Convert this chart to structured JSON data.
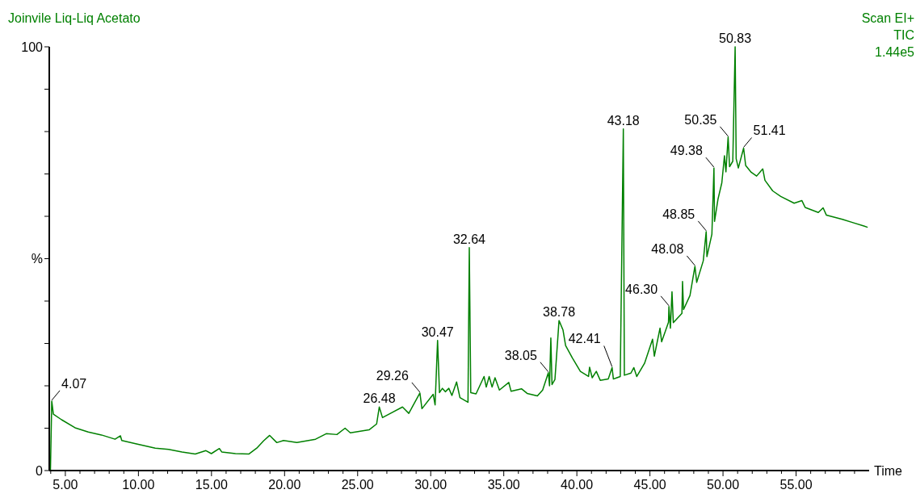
{
  "chart_data": {
    "type": "line",
    "title": "Joinvile Liq-Liq Acetato",
    "xlabel": "Time",
    "ylabel": "%",
    "x": [
      3.98,
      4.07,
      4.18,
      4.74,
      5.66,
      6.57,
      7.47,
      8.4,
      8.77,
      8.86,
      9.87,
      11.15,
      12.06,
      12.98,
      13.89,
      14.62,
      14.99,
      15.54,
      15.7,
      16.64,
      17.55,
      18.1,
      18.56,
      18.98,
      19.47,
      19.93,
      20.84,
      22.12,
      22.85,
      23.58,
      24.14,
      24.5,
      25.78,
      26.3,
      26.48,
      26.7,
      28.07,
      28.5,
      29.26,
      29.4,
      30.17,
      30.3,
      30.47,
      30.6,
      30.8,
      31.0,
      31.24,
      31.45,
      31.77,
      32.0,
      32.55,
      32.64,
      32.74,
      33.1,
      33.65,
      33.8,
      34.0,
      34.2,
      34.4,
      34.7,
      35.34,
      35.5,
      36.21,
      36.6,
      37.3,
      37.66,
      38.05,
      38.13,
      38.22,
      38.3,
      38.5,
      38.78,
      39.05,
      39.23,
      39.69,
      40.24,
      40.8,
      40.87,
      41.05,
      41.33,
      41.6,
      42.15,
      42.41,
      42.5,
      42.97,
      43.18,
      43.25,
      43.7,
      43.9,
      44.1,
      44.63,
      45.18,
      45.3,
      45.69,
      45.8,
      46.27,
      46.3,
      46.4,
      46.51,
      46.6,
      47.19,
      47.23,
      47.3,
      47.74,
      48.08,
      48.2,
      48.65,
      48.85,
      48.9,
      49.24,
      49.38,
      49.42,
      49.66,
      49.92,
      50.1,
      50.2,
      50.35,
      50.45,
      50.67,
      50.83,
      50.9,
      51.05,
      51.41,
      51.55,
      51.93,
      52.3,
      52.72,
      52.87,
      53.4,
      53.95,
      54.87,
      55.4,
      55.62,
      56.52,
      56.85,
      57.07,
      58.17,
      58.9,
      59.64,
      59.9
    ],
    "series": [
      {
        "color": "#008000",
        "values": [
          0,
          16.4,
          13.3,
          12.0,
          10.1,
          9.1,
          8.4,
          7.4,
          8.2,
          7.1,
          6.3,
          5.3,
          5.0,
          4.4,
          3.9,
          4.7,
          4.0,
          5.2,
          4.4,
          4.0,
          3.9,
          5.3,
          7.0,
          8.3,
          6.6,
          7.1,
          6.6,
          7.4,
          8.7,
          8.5,
          10.0,
          8.9,
          9.6,
          11.0,
          15.0,
          12.5,
          15.0,
          13.5,
          18.3,
          14.6,
          18.0,
          15.5,
          30.7,
          18.4,
          19.4,
          18.6,
          19.4,
          17.7,
          20.9,
          17.2,
          16.1,
          52.6,
          18.4,
          18.1,
          22.2,
          19.7,
          22.2,
          19.7,
          21.9,
          19.0,
          20.8,
          18.7,
          19.3,
          18.2,
          17.6,
          19.0,
          23.1,
          20.0,
          31.3,
          20.3,
          21.5,
          35.4,
          33.2,
          29.5,
          26.6,
          23.4,
          22.2,
          24.4,
          21.9,
          23.4,
          21.3,
          21.6,
          24.3,
          21.6,
          22.2,
          80.6,
          22.5,
          23.0,
          24.3,
          22.2,
          25.3,
          31.0,
          27.0,
          33.6,
          30.4,
          35.0,
          38.7,
          33.6,
          42.2,
          34.9,
          37.1,
          44.6,
          38.0,
          41.3,
          48.2,
          44.4,
          49.5,
          56.4,
          50.5,
          55.8,
          71.4,
          58.8,
          64.1,
          67.9,
          74.3,
          70.5,
          78.7,
          71.7,
          73.0,
          100,
          73.6,
          71.4,
          76.1,
          72.0,
          70.4,
          69.5,
          71.2,
          68.5,
          66.0,
          64.7,
          63.1,
          63.7,
          62.1,
          60.9,
          62.0,
          60.3,
          59.3,
          58.5,
          57.7,
          57.4
        ]
      }
    ],
    "xlim": [
      3.9,
      60
    ],
    "xticks": [
      {
        "value": 4,
        "label": null
      },
      {
        "value": 5,
        "label": "5.00"
      },
      {
        "value": 6,
        "label": null
      },
      {
        "value": 7,
        "label": null
      },
      {
        "value": 8,
        "label": null
      },
      {
        "value": 9,
        "label": null
      },
      {
        "value": 10,
        "label": "10.00"
      },
      {
        "value": 11,
        "label": null
      },
      {
        "value": 12,
        "label": null
      },
      {
        "value": 13,
        "label": null
      },
      {
        "value": 14,
        "label": null
      },
      {
        "value": 15,
        "label": "15.00"
      },
      {
        "value": 16,
        "label": null
      },
      {
        "value": 17,
        "label": null
      },
      {
        "value": 18,
        "label": null
      },
      {
        "value": 19,
        "label": null
      },
      {
        "value": 20,
        "label": "20.00"
      },
      {
        "value": 21,
        "label": null
      },
      {
        "value": 22,
        "label": null
      },
      {
        "value": 23,
        "label": null
      },
      {
        "value": 24,
        "label": null
      },
      {
        "value": 25,
        "label": "25.00"
      },
      {
        "value": 26,
        "label": null
      },
      {
        "value": 27,
        "label": null
      },
      {
        "value": 28,
        "label": null
      },
      {
        "value": 29,
        "label": null
      },
      {
        "value": 30,
        "label": "30.00"
      },
      {
        "value": 31,
        "label": null
      },
      {
        "value": 32,
        "label": null
      },
      {
        "value": 33,
        "label": null
      },
      {
        "value": 34,
        "label": null
      },
      {
        "value": 35,
        "label": "35.00"
      },
      {
        "value": 36,
        "label": null
      },
      {
        "value": 37,
        "label": null
      },
      {
        "value": 38,
        "label": null
      },
      {
        "value": 39,
        "label": null
      },
      {
        "value": 40,
        "label": "40.00"
      },
      {
        "value": 41,
        "label": null
      },
      {
        "value": 42,
        "label": null
      },
      {
        "value": 43,
        "label": null
      },
      {
        "value": 44,
        "label": null
      },
      {
        "value": 45,
        "label": "45.00"
      },
      {
        "value": 46,
        "label": null
      },
      {
        "value": 47,
        "label": null
      },
      {
        "value": 48,
        "label": null
      },
      {
        "value": 49,
        "label": null
      },
      {
        "value": 50,
        "label": "50.00"
      },
      {
        "value": 51,
        "label": null
      },
      {
        "value": 52,
        "label": null
      },
      {
        "value": 53,
        "label": null
      },
      {
        "value": 54,
        "label": null
      },
      {
        "value": 55,
        "label": "55.00"
      },
      {
        "value": 56,
        "label": null
      },
      {
        "value": 57,
        "label": null
      },
      {
        "value": 58,
        "label": null
      },
      {
        "value": 59,
        "label": null
      }
    ],
    "ylim": [
      0,
      100
    ],
    "yticks": [
      0,
      {
        "value": 10,
        "label": null
      },
      {
        "value": 20,
        "label": null
      },
      {
        "value": 30,
        "label": null
      },
      {
        "value": 40,
        "label": null
      },
      {
        "value": 50,
        "label": null
      },
      {
        "value": 60,
        "label": null
      },
      {
        "value": 70,
        "label": null
      },
      {
        "value": 80,
        "label": null
      },
      {
        "value": 90,
        "label": null
      },
      100
    ],
    "annotations": [
      "Scan EI+",
      "TIC",
      "1.44e5",
      {
        "text": "4.07",
        "x": 4.07,
        "y": 16.4
      },
      {
        "text": "26.48",
        "x": 26.48,
        "y": 15.0
      },
      {
        "text": "29.26",
        "x": 29.26,
        "y": 18.3
      },
      {
        "text": "30.47",
        "x": 30.47,
        "y": 30.7
      },
      {
        "text": "32.64",
        "x": 32.64,
        "y": 52.6
      },
      {
        "text": "38.05",
        "x": 38.05,
        "y": 23.1
      },
      {
        "text": "38.78",
        "x": 38.78,
        "y": 35.4
      },
      {
        "text": "42.41",
        "x": 42.41,
        "y": 24.3
      },
      {
        "text": "43.18",
        "x": 43.18,
        "y": 80.6
      },
      {
        "text": "46.30",
        "x": 46.3,
        "y": 38.7
      },
      {
        "text": "48.08",
        "x": 48.08,
        "y": 48.2
      },
      {
        "text": "48.85",
        "x": 48.85,
        "y": 56.4
      },
      {
        "text": "49.38",
        "x": 49.38,
        "y": 71.4
      },
      {
        "text": "50.35",
        "x": 50.35,
        "y": 78.7
      },
      {
        "text": "50.83",
        "x": 50.83,
        "y": 100
      },
      {
        "text": "51.41",
        "x": 51.41,
        "y": 76.1
      }
    ],
    "grid": false
  }
}
